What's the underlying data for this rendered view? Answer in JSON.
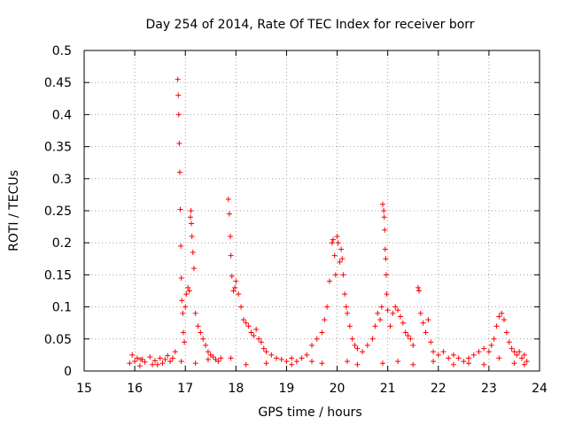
{
  "chart_data": {
    "type": "scatter",
    "title": "Day 254 of 2014, Rate Of TEC Index for receiver borr",
    "xlabel": "GPS time / hours",
    "ylabel": "ROTI / TECUs",
    "xlim": [
      15,
      24
    ],
    "ylim": [
      0,
      0.5
    ],
    "xticks": [
      "15",
      "16",
      "17",
      "18",
      "19",
      "20",
      "21",
      "22",
      "23",
      "24"
    ],
    "yticks": [
      "0",
      "0.05",
      "0.1",
      "0.15",
      "0.2",
      "0.25",
      "0.3",
      "0.35",
      "0.4",
      "0.45",
      "0.5"
    ],
    "grid": true,
    "marker": "+",
    "color": "#ff0000",
    "series": [
      {
        "name": "ROTI",
        "points": [
          [
            15.9,
            0.012
          ],
          [
            15.95,
            0.025
          ],
          [
            16.0,
            0.015
          ],
          [
            16.05,
            0.02
          ],
          [
            16.1,
            0.008
          ],
          [
            16.15,
            0.018
          ],
          [
            16.2,
            0.014
          ],
          [
            16.3,
            0.022
          ],
          [
            16.35,
            0.01
          ],
          [
            16.4,
            0.016
          ],
          [
            16.5,
            0.02
          ],
          [
            16.55,
            0.012
          ],
          [
            16.6,
            0.018
          ],
          [
            16.65,
            0.024
          ],
          [
            16.7,
            0.015
          ],
          [
            16.75,
            0.02
          ],
          [
            16.8,
            0.03
          ],
          [
            16.85,
            0.455
          ],
          [
            16.86,
            0.43
          ],
          [
            16.87,
            0.4
          ],
          [
            16.88,
            0.355
          ],
          [
            16.89,
            0.31
          ],
          [
            16.9,
            0.252
          ],
          [
            16.91,
            0.195
          ],
          [
            16.92,
            0.145
          ],
          [
            16.93,
            0.11
          ],
          [
            16.95,
            0.09
          ],
          [
            16.96,
            0.06
          ],
          [
            16.98,
            0.045
          ],
          [
            17.0,
            0.1
          ],
          [
            17.02,
            0.12
          ],
          [
            17.05,
            0.13
          ],
          [
            17.08,
            0.125
          ],
          [
            17.1,
            0.24
          ],
          [
            17.11,
            0.25
          ],
          [
            17.12,
            0.23
          ],
          [
            17.13,
            0.21
          ],
          [
            17.15,
            0.185
          ],
          [
            17.17,
            0.16
          ],
          [
            17.2,
            0.09
          ],
          [
            17.25,
            0.07
          ],
          [
            17.3,
            0.06
          ],
          [
            17.35,
            0.05
          ],
          [
            17.4,
            0.04
          ],
          [
            17.45,
            0.03
          ],
          [
            17.5,
            0.025
          ],
          [
            17.55,
            0.022
          ],
          [
            17.6,
            0.018
          ],
          [
            17.65,
            0.015
          ],
          [
            17.7,
            0.02
          ],
          [
            17.85,
            0.268
          ],
          [
            17.87,
            0.245
          ],
          [
            17.89,
            0.21
          ],
          [
            17.9,
            0.18
          ],
          [
            17.92,
            0.148
          ],
          [
            17.95,
            0.125
          ],
          [
            17.98,
            0.13
          ],
          [
            18.0,
            0.14
          ],
          [
            18.05,
            0.12
          ],
          [
            18.1,
            0.1
          ],
          [
            18.15,
            0.08
          ],
          [
            18.2,
            0.075
          ],
          [
            18.25,
            0.07
          ],
          [
            18.3,
            0.06
          ],
          [
            18.35,
            0.055
          ],
          [
            18.4,
            0.065
          ],
          [
            18.45,
            0.05
          ],
          [
            18.5,
            0.045
          ],
          [
            18.55,
            0.035
          ],
          [
            18.6,
            0.03
          ],
          [
            18.7,
            0.025
          ],
          [
            18.8,
            0.02
          ],
          [
            18.9,
            0.018
          ],
          [
            19.0,
            0.015
          ],
          [
            19.1,
            0.02
          ],
          [
            19.2,
            0.015
          ],
          [
            19.3,
            0.02
          ],
          [
            19.4,
            0.025
          ],
          [
            19.5,
            0.04
          ],
          [
            19.6,
            0.05
          ],
          [
            19.7,
            0.06
          ],
          [
            19.75,
            0.08
          ],
          [
            19.8,
            0.1
          ],
          [
            19.85,
            0.14
          ],
          [
            19.9,
            0.2
          ],
          [
            19.92,
            0.205
          ],
          [
            19.95,
            0.18
          ],
          [
            19.97,
            0.15
          ],
          [
            20.0,
            0.21
          ],
          [
            20.02,
            0.2
          ],
          [
            20.05,
            0.17
          ],
          [
            20.08,
            0.19
          ],
          [
            20.1,
            0.175
          ],
          [
            20.12,
            0.15
          ],
          [
            20.15,
            0.12
          ],
          [
            20.18,
            0.1
          ],
          [
            20.2,
            0.09
          ],
          [
            20.25,
            0.07
          ],
          [
            20.3,
            0.05
          ],
          [
            20.35,
            0.04
          ],
          [
            20.4,
            0.035
          ],
          [
            20.5,
            0.03
          ],
          [
            20.6,
            0.04
          ],
          [
            20.7,
            0.05
          ],
          [
            20.75,
            0.07
          ],
          [
            20.8,
            0.09
          ],
          [
            20.85,
            0.08
          ],
          [
            20.88,
            0.1
          ],
          [
            20.9,
            0.26
          ],
          [
            20.92,
            0.25
          ],
          [
            20.93,
            0.24
          ],
          [
            20.94,
            0.22
          ],
          [
            20.95,
            0.19
          ],
          [
            20.96,
            0.175
          ],
          [
            20.97,
            0.15
          ],
          [
            20.98,
            0.12
          ],
          [
            21.0,
            0.095
          ],
          [
            21.05,
            0.07
          ],
          [
            21.1,
            0.09
          ],
          [
            21.15,
            0.1
          ],
          [
            21.2,
            0.095
          ],
          [
            21.25,
            0.085
          ],
          [
            21.3,
            0.075
          ],
          [
            21.35,
            0.06
          ],
          [
            21.4,
            0.055
          ],
          [
            21.45,
            0.05
          ],
          [
            21.5,
            0.04
          ],
          [
            21.6,
            0.13
          ],
          [
            21.62,
            0.125
          ],
          [
            21.65,
            0.09
          ],
          [
            21.7,
            0.075
          ],
          [
            21.75,
            0.06
          ],
          [
            21.8,
            0.08
          ],
          [
            21.85,
            0.045
          ],
          [
            21.9,
            0.03
          ],
          [
            22.0,
            0.025
          ],
          [
            22.1,
            0.03
          ],
          [
            22.2,
            0.02
          ],
          [
            22.3,
            0.025
          ],
          [
            22.4,
            0.02
          ],
          [
            22.5,
            0.015
          ],
          [
            22.6,
            0.02
          ],
          [
            22.7,
            0.025
          ],
          [
            22.8,
            0.03
          ],
          [
            22.9,
            0.035
          ],
          [
            23.0,
            0.03
          ],
          [
            23.05,
            0.04
          ],
          [
            23.1,
            0.05
          ],
          [
            23.15,
            0.07
          ],
          [
            23.2,
            0.085
          ],
          [
            23.25,
            0.09
          ],
          [
            23.3,
            0.08
          ],
          [
            23.35,
            0.06
          ],
          [
            23.4,
            0.045
          ],
          [
            23.45,
            0.035
          ],
          [
            23.5,
            0.03
          ],
          [
            23.55,
            0.025
          ],
          [
            23.6,
            0.03
          ],
          [
            23.65,
            0.02
          ],
          [
            23.7,
            0.025
          ],
          [
            23.75,
            0.015
          ],
          [
            16.12,
            0.018
          ],
          [
            16.45,
            0.01
          ],
          [
            16.92,
            0.015
          ],
          [
            17.2,
            0.012
          ],
          [
            17.45,
            0.018
          ],
          [
            17.9,
            0.02
          ],
          [
            18.2,
            0.01
          ],
          [
            18.6,
            0.012
          ],
          [
            19.1,
            0.01
          ],
          [
            19.5,
            0.015
          ],
          [
            19.7,
            0.012
          ],
          [
            20.2,
            0.015
          ],
          [
            20.4,
            0.01
          ],
          [
            20.9,
            0.012
          ],
          [
            21.2,
            0.015
          ],
          [
            21.5,
            0.01
          ],
          [
            21.9,
            0.015
          ],
          [
            22.3,
            0.01
          ],
          [
            22.6,
            0.012
          ],
          [
            22.9,
            0.01
          ],
          [
            23.2,
            0.02
          ],
          [
            23.5,
            0.012
          ],
          [
            23.7,
            0.01
          ]
        ]
      }
    ]
  }
}
